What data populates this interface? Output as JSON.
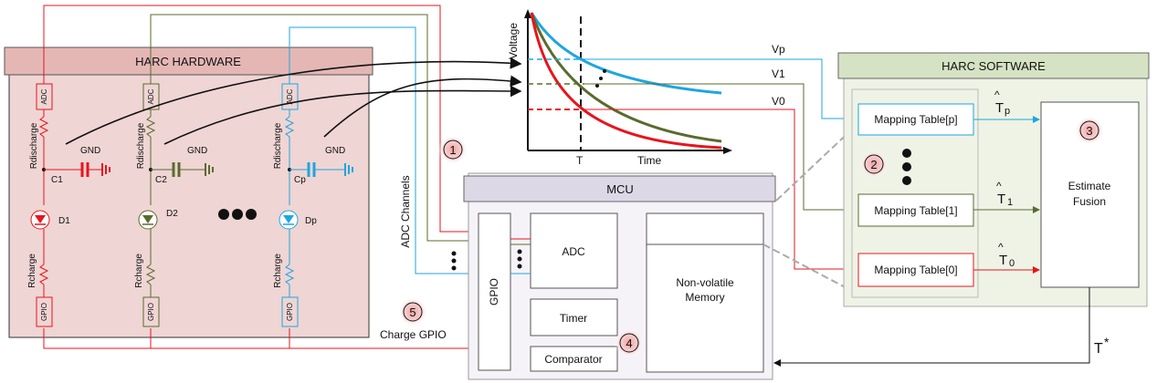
{
  "hardware": {
    "title": "HARC HARDWARE",
    "adc_label": "ADC",
    "gpio_label": "GPIO",
    "r_discharge": "Rdischarge",
    "r_charge": "Rcharge",
    "gnd": "GND",
    "capacitors": [
      "C1",
      "C2",
      "Cp"
    ],
    "diodes": [
      "D1",
      "D2",
      "Dp"
    ],
    "colors": {
      "chain1": "#e8141c",
      "chain2": "#5a6b2e",
      "chainp": "#1ea6e0",
      "box_fill": "#efd5d4",
      "header_fill": "#e4b7b5"
    }
  },
  "chart": {
    "ylabel": "Voltage",
    "xlabel": "Time",
    "t_marker": "T",
    "levels": [
      "Vp",
      "V1",
      "V0"
    ]
  },
  "mcu": {
    "title": "MCU",
    "gpio": "GPIO",
    "adc": "ADC",
    "timer": "Timer",
    "comparator": "Comparator",
    "memory_line1": "Non-volatile",
    "memory_line2": "Memory",
    "colors": {
      "fill": "#f5f3f8",
      "header_fill": "#ddd8e6"
    }
  },
  "software": {
    "title": "HARC SOFTWARE",
    "tables": [
      "Mapping Table[p]",
      "Mapping Table[1]",
      "Mapping Table[0]"
    ],
    "estimates": [
      "T",
      "T",
      "T"
    ],
    "estimate_subscripts": [
      "p",
      "1",
      "0"
    ],
    "fusion_line1": "Estimate",
    "fusion_line2": "Fusion",
    "output": "T",
    "output_sup": "*",
    "colors": {
      "fill": "#eef3e6",
      "header_fill": "#d6e2c4"
    }
  },
  "labels": {
    "adc_channels": "ADC Channels",
    "charge_gpio": "Charge GPIO",
    "step_1": "1",
    "step_2": "2",
    "step_3": "3",
    "step_4": "4",
    "step_5": "5"
  }
}
